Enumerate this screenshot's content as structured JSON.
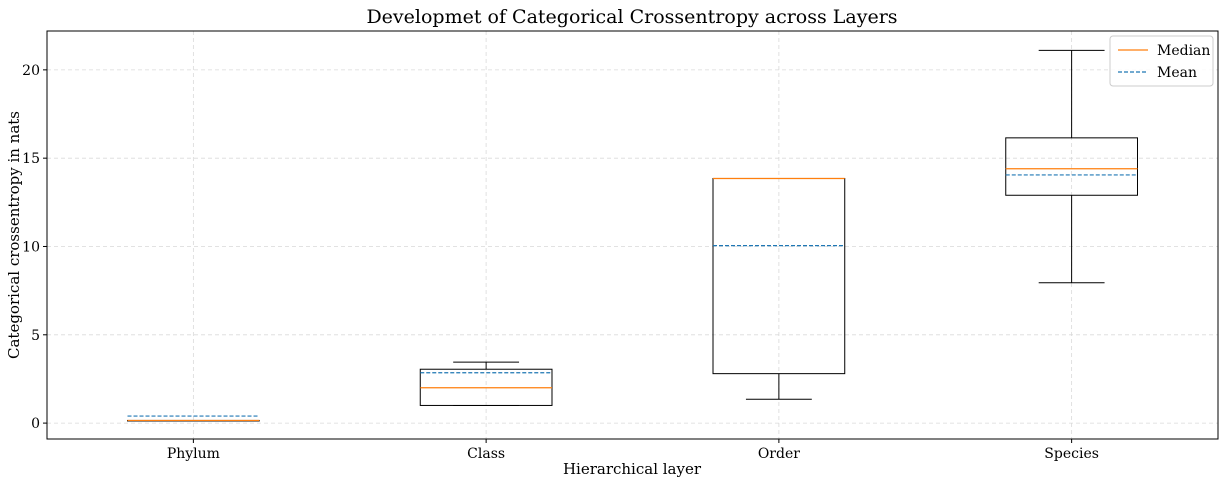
{
  "chart_data": {
    "type": "box",
    "title": "Developmet of Categorical Crossentropy across Layers",
    "xlabel": "Hierarchical layer",
    "ylabel": "Categorical crossentropy in nats",
    "ylim": [
      -0.9,
      22.2
    ],
    "yticks": [
      0,
      5,
      10,
      15,
      20
    ],
    "grid": true,
    "legend": {
      "position": "top-right",
      "entries": [
        {
          "label": "Median",
          "color": "#ff7f0e",
          "style": "solid"
        },
        {
          "label": "Mean",
          "color": "#1f77b4",
          "style": "dashed"
        }
      ]
    },
    "categories": [
      "Phylum",
      "Class",
      "Order",
      "Species"
    ],
    "boxes": [
      {
        "category": "Phylum",
        "whisker_low": 0.15,
        "q1": 0.15,
        "median": 0.15,
        "q3": 0.15,
        "whisker_high": 0.15,
        "mean": 0.4
      },
      {
        "category": "Class",
        "whisker_low": 1.0,
        "q1": 1.0,
        "median": 2.0,
        "q3": 3.05,
        "whisker_high": 3.45,
        "mean": 2.85
      },
      {
        "category": "Order",
        "whisker_low": 1.35,
        "q1": 2.8,
        "median": 13.85,
        "q3": 13.85,
        "whisker_high": 13.85,
        "mean": 10.05
      },
      {
        "category": "Species",
        "whisker_low": 7.95,
        "q1": 12.9,
        "median": 14.4,
        "q3": 16.15,
        "whisker_high": 21.1,
        "mean": 14.05
      }
    ],
    "colors": {
      "median": "#ff7f0e",
      "mean": "#1f77b4",
      "box": "#000000",
      "grid": "#d9d9d9"
    }
  }
}
